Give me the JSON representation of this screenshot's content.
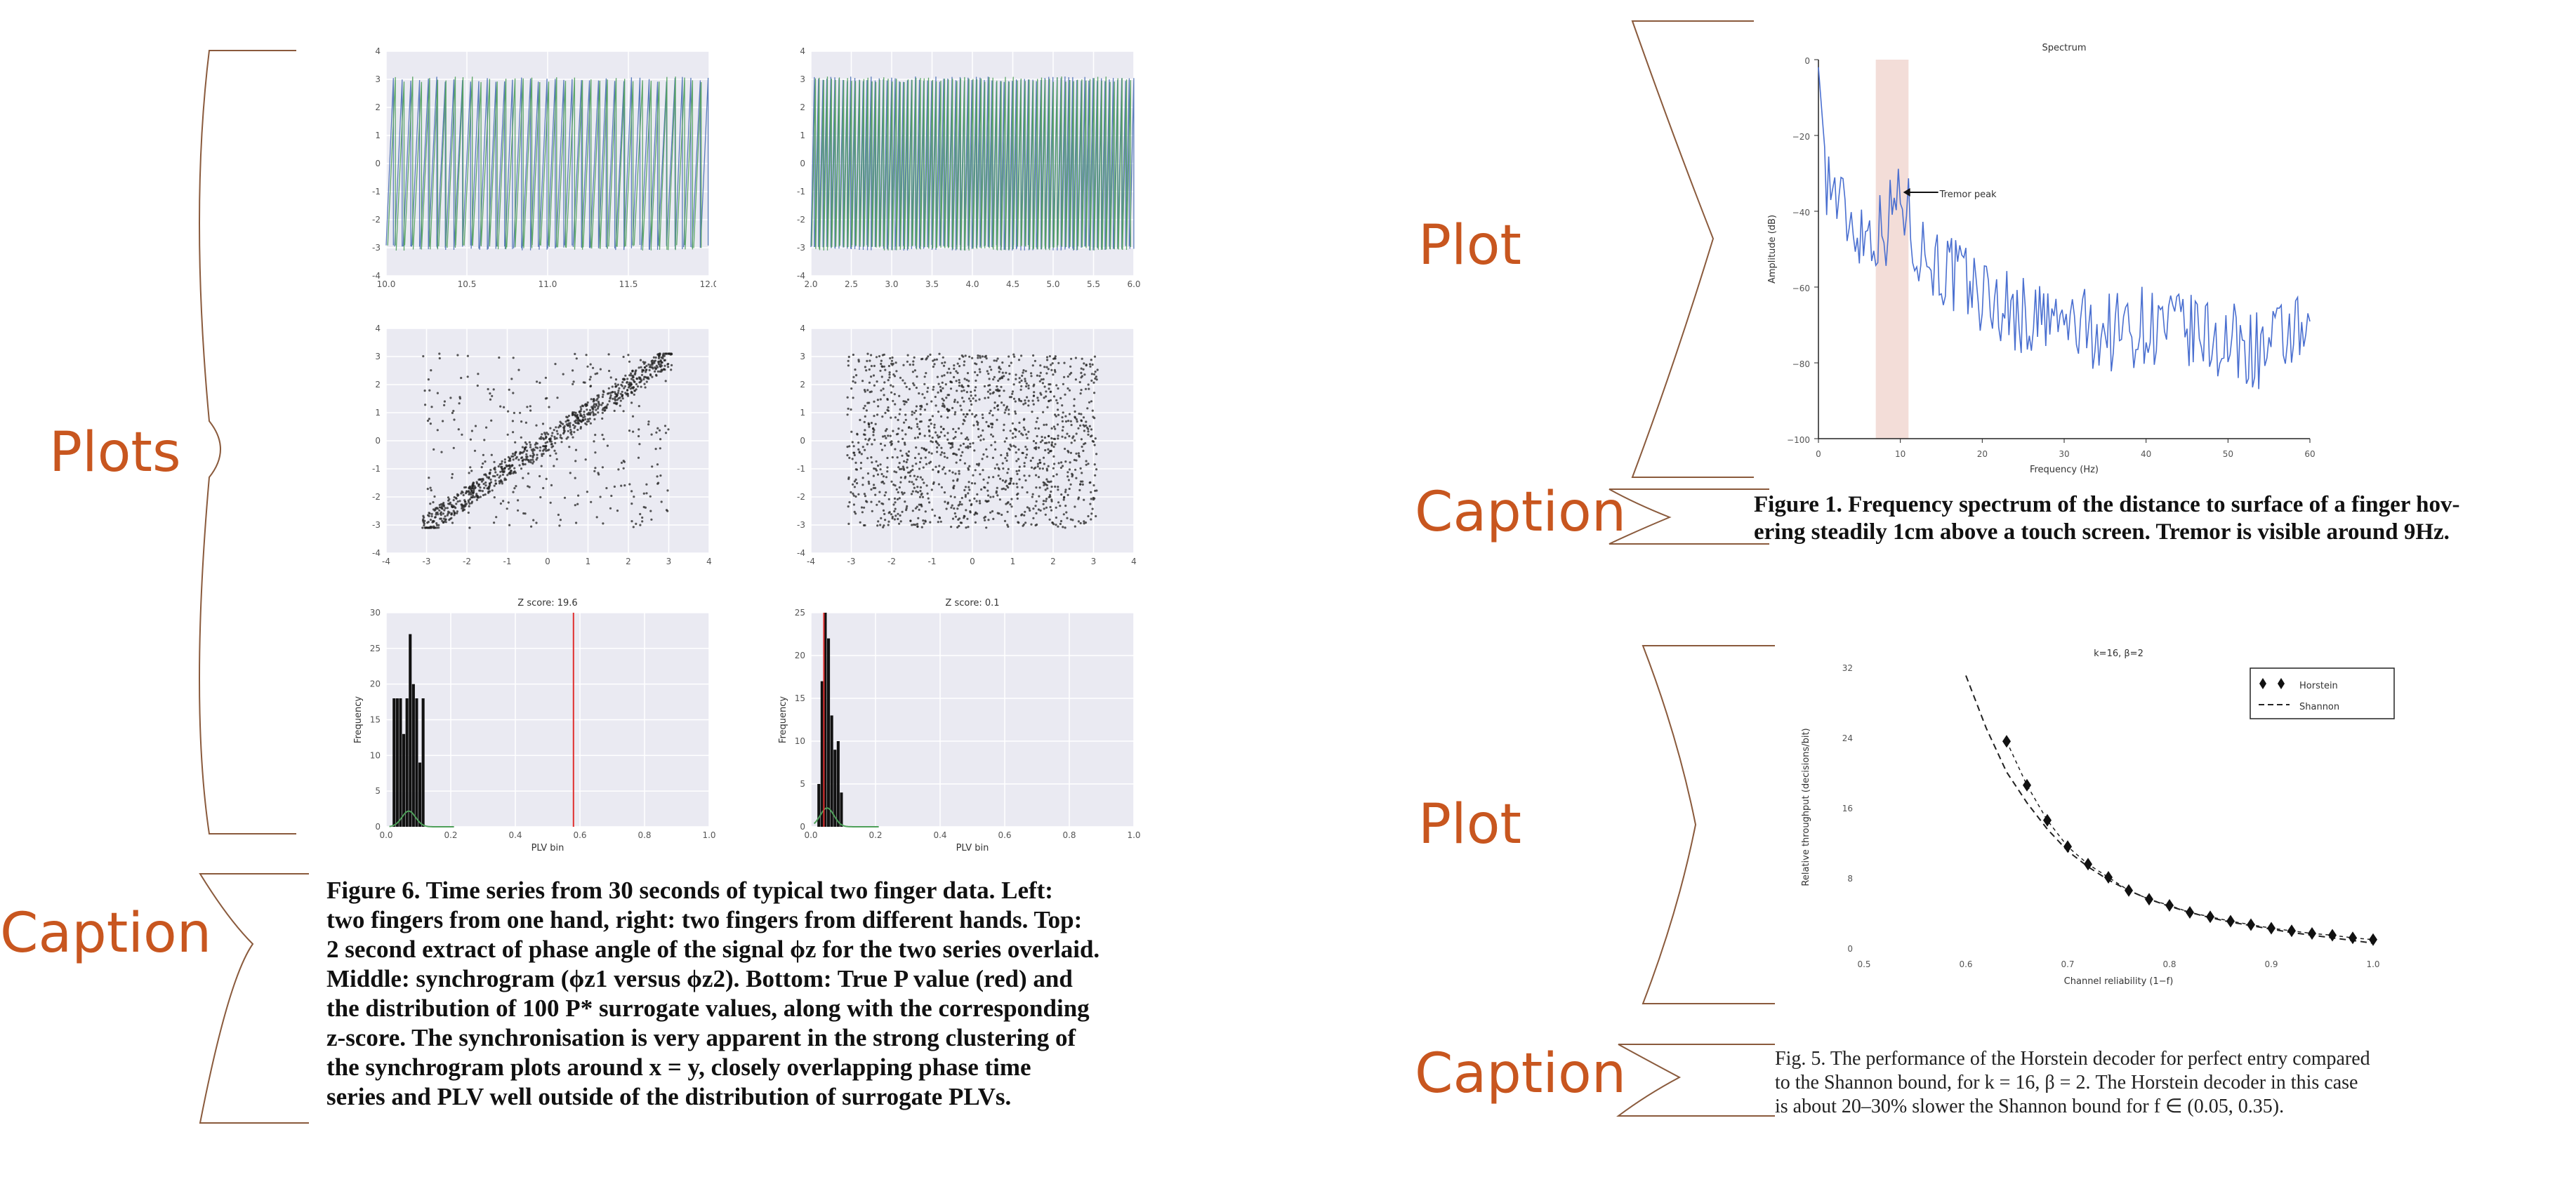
{
  "labels": {
    "plots_main": "Plots",
    "caption_left": "Caption",
    "plot_spectrum": "Plot",
    "caption_spectrum": "Caption",
    "plot_horstein": "Plot",
    "caption_horstein": "Caption"
  },
  "figure6": {
    "caption_lines": [
      "Figure 6.  Time series from 30 seconds of typical two finger data.  Left:",
      "two fingers from one hand, right: two fingers from different hands. Top:",
      "2 second extract of phase angle of the signal ϕz for the two series overlaid.",
      "Middle:  synchrogram (ϕz1 versus ϕz2). Bottom: True P value (red) and",
      "the distribution of 100 P* surrogate values, along with the corresponding",
      "z-score. The synchronisation is very apparent in the strong clustering of",
      "the synchrogram plots around  x = y,  closely overlapping phase time",
      "series and PLV well outside of the distribution of surrogate PLVs."
    ],
    "hist_left_title": "Z score: 19.6",
    "hist_right_title": "Z score: 0.1",
    "hist_xlabel": "PLV bin",
    "hist_ylabel": "Frequency"
  },
  "figure1": {
    "caption_lines": [
      "Figure 1. Frequency spectrum of the distance to surface of a finger hov-",
      "ering steadily 1cm above a touch screen. Tremor is visible around 9Hz."
    ]
  },
  "figure5": {
    "caption_lines": [
      "Fig. 5.   The performance of the Horstein decoder for perfect entry compared",
      "to the Shannon bound, for k = 16, β = 2. The Horstein decoder in this case",
      "is about 20–30% slower the Shannon bound for f ∈ (0.05, 0.35)."
    ]
  },
  "chart_data": [
    {
      "id": "phase-left",
      "type": "line",
      "xlim": [
        10.0,
        12.0
      ],
      "ylim": [
        -4,
        4
      ],
      "xticks": [
        "10.0",
        "10.5",
        "11.0",
        "11.5",
        "12.0"
      ],
      "yticks": [
        "-4",
        "-3",
        "-2",
        "-1",
        "0",
        "1",
        "2",
        "3",
        "4"
      ],
      "sawtooth_cycles": 38,
      "colors": [
        "#4a6fb5",
        "#4fa05a"
      ]
    },
    {
      "id": "phase-right",
      "type": "line",
      "xlim": [
        2.0,
        6.0
      ],
      "ylim": [
        -4,
        4
      ],
      "xticks": [
        "2.0",
        "2.5",
        "3.0",
        "3.5",
        "4.0",
        "4.5",
        "5.0",
        "5.5",
        "6.0"
      ],
      "yticks": [
        "-4",
        "-3",
        "-2",
        "-1",
        "0",
        "1",
        "2",
        "3",
        "4"
      ],
      "sawtooth_cycles": 80,
      "colors": [
        "#4a6fb5",
        "#4fa05a"
      ]
    },
    {
      "id": "synchrogram-left",
      "type": "scatter",
      "xlim": [
        -4,
        4
      ],
      "ylim": [
        -4,
        4
      ],
      "xticks": [
        "-4",
        "-3",
        "-2",
        "-1",
        "0",
        "1",
        "2",
        "3",
        "4"
      ],
      "yticks": [
        "-4",
        "-3",
        "-2",
        "-1",
        "0",
        "1",
        "2",
        "3",
        "4"
      ],
      "pattern": "clustered along y = x",
      "color": "#222222"
    },
    {
      "id": "synchrogram-right",
      "type": "scatter",
      "xlim": [
        -4,
        4
      ],
      "ylim": [
        -4,
        4
      ],
      "xticks": [
        "-4",
        "-3",
        "-2",
        "-1",
        "0",
        "1",
        "2",
        "3",
        "4"
      ],
      "yticks": [
        "-4",
        "-3",
        "-2",
        "-1",
        "0",
        "1",
        "2",
        "3",
        "4"
      ],
      "pattern": "uniform",
      "color": "#222222"
    },
    {
      "id": "hist-left",
      "type": "bar",
      "title": "Z score: 19.6",
      "xlabel": "PLV bin",
      "ylabel": "Frequency",
      "xlim": [
        0,
        1
      ],
      "ylim": [
        0,
        30
      ],
      "xticks": [
        "0.0",
        "0.2",
        "0.4",
        "0.6",
        "0.8",
        "1.0"
      ],
      "yticks": [
        "0",
        "5",
        "10",
        "15",
        "20",
        "25",
        "30"
      ],
      "bar_edges": [
        0.02,
        0.03,
        0.04,
        0.05,
        0.06,
        0.07,
        0.08,
        0.09,
        0.1,
        0.11
      ],
      "bar_values": [
        18,
        18,
        18,
        13,
        18,
        27,
        20,
        18,
        9,
        18
      ],
      "true_value": 0.58,
      "true_color": "#e03030",
      "fit_color": "#4fa05a"
    },
    {
      "id": "hist-right",
      "type": "bar",
      "title": "Z score: 0.1",
      "xlabel": "",
      "ylabel": "Frequency",
      "xlim": [
        0,
        1
      ],
      "ylim": [
        0,
        25
      ],
      "xticks": [
        "0.0",
        "0.2",
        "0.4",
        "0.6",
        "0.8",
        "1.0"
      ],
      "yticks": [
        "0",
        "5",
        "10",
        "15",
        "20",
        "25"
      ],
      "bar_edges": [
        0.02,
        0.03,
        0.04,
        0.05,
        0.06,
        0.07,
        0.08,
        0.09
      ],
      "bar_values": [
        5,
        17,
        25,
        22,
        13,
        9,
        10,
        4
      ],
      "true_value": 0.04,
      "true_color": "#e03030",
      "fit_color": "#4fa05a"
    },
    {
      "id": "spectrum",
      "type": "line",
      "title": "Spectrum",
      "xlabel": "Frequency (Hz)",
      "ylabel": "Amplitude (dB)",
      "xlim": [
        0,
        60
      ],
      "ylim": [
        -100,
        0
      ],
      "xticks": [
        "0",
        "10",
        "20",
        "30",
        "40",
        "50",
        "60"
      ],
      "yticks": [
        "0",
        "-20",
        "-40",
        "-60",
        "-80",
        "-100"
      ],
      "highlight_band": [
        7,
        11
      ],
      "highlight_color": "#f3ddd8",
      "annotation": "Tremor peak",
      "annotation_at": [
        10,
        -35
      ],
      "line_color": "#4a6fd0",
      "envelope": [
        [
          0,
          -2
        ],
        [
          1,
          -30
        ],
        [
          3,
          -40
        ],
        [
          5,
          -45
        ],
        [
          8,
          -45
        ],
        [
          10,
          -35
        ],
        [
          12,
          -48
        ],
        [
          15,
          -55
        ],
        [
          20,
          -62
        ],
        [
          25,
          -68
        ],
        [
          30,
          -70
        ],
        [
          35,
          -72
        ],
        [
          40,
          -70
        ],
        [
          45,
          -72
        ],
        [
          50,
          -75
        ],
        [
          55,
          -77
        ],
        [
          58,
          -72
        ],
        [
          60,
          -78
        ]
      ]
    },
    {
      "id": "horstein",
      "type": "line",
      "title": "k=16, β=2",
      "xlabel": "Channel reliability (1−f)",
      "ylabel": "Relative throughput (decisions/bit)",
      "xlim": [
        0.5,
        1.0
      ],
      "ylim": [
        0,
        32
      ],
      "xticks": [
        "0.5",
        "0.6",
        "0.7",
        "0.8",
        "0.9",
        "1.0"
      ],
      "yticks": [
        "0",
        "8",
        "16",
        "24",
        "32"
      ],
      "series": [
        {
          "name": "Horstein",
          "x": [
            0.64,
            0.66,
            0.68,
            0.7,
            0.72,
            0.74,
            0.76,
            0.78,
            0.8,
            0.82,
            0.84,
            0.86,
            0.88,
            0.9,
            0.92,
            0.94,
            0.96,
            0.98,
            1.0
          ],
          "values": [
            23.5,
            18.5,
            14.5,
            11.5,
            9.5,
            8.0,
            6.5,
            5.5,
            4.8,
            4.0,
            3.5,
            3.0,
            2.6,
            2.2,
            1.9,
            1.6,
            1.4,
            1.1,
            0.9
          ]
        },
        {
          "name": "Shannon",
          "x": [
            0.6,
            0.62,
            0.64,
            0.66,
            0.68,
            0.7,
            0.72,
            0.74,
            0.76,
            0.78,
            0.8,
            0.82,
            0.84,
            0.86,
            0.88,
            0.9,
            0.92,
            0.94,
            0.96,
            0.98,
            1.0
          ],
          "values": [
            31,
            25,
            20,
            16.5,
            13.5,
            11,
            9.2,
            7.7,
            6.5,
            5.5,
            4.7,
            4.0,
            3.4,
            2.9,
            2.5,
            2.1,
            1.7,
            1.4,
            1.1,
            0.8,
            0.5
          ]
        }
      ]
    }
  ]
}
